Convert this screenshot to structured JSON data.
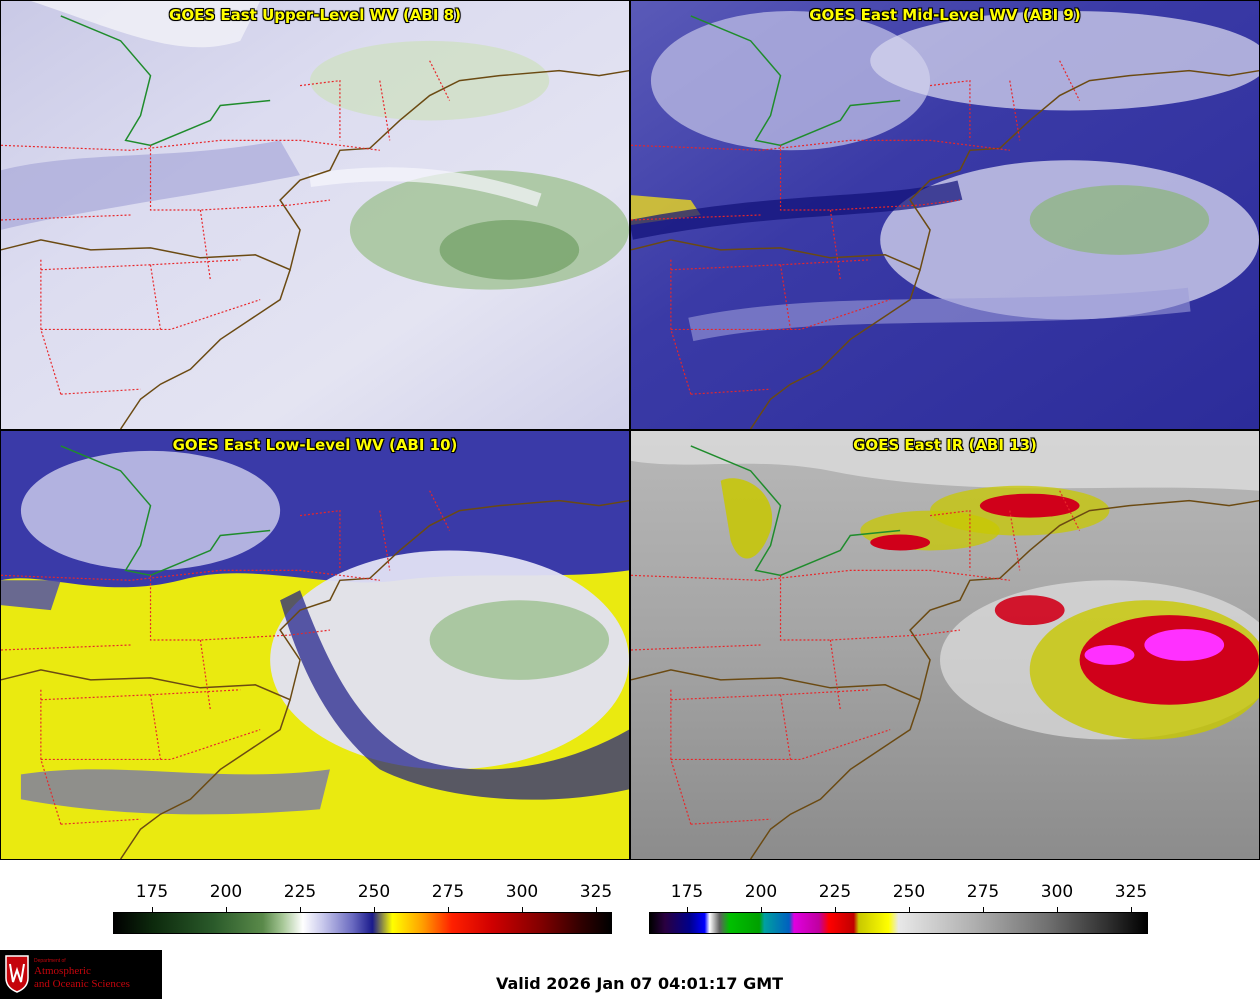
{
  "panels": [
    {
      "title": "GOES East Upper-Level WV (ABI 8)",
      "colormap": "wv"
    },
    {
      "title": "GOES East Mid-Level WV (ABI 9)",
      "colormap": "wv"
    },
    {
      "title": "GOES East Low-Level WV (ABI 10)",
      "colormap": "wv"
    },
    {
      "title": "GOES East IR (ABI 13)",
      "colormap": "ir"
    }
  ],
  "colorbars": {
    "wv": {
      "ticks": [
        "175",
        "200",
        "225",
        "250",
        "275",
        "300",
        "325"
      ]
    },
    "ir": {
      "ticks": [
        "175",
        "200",
        "225",
        "250",
        "275",
        "300",
        "325"
      ]
    }
  },
  "valid_time": "Valid 2026 Jan 07 04:01:17 GMT",
  "logo": {
    "dept": "Department of",
    "line1": "Atmospheric",
    "line2": "and Oceanic Sciences",
    "shield_letter": "W"
  },
  "colors": {
    "state_borders": "#e8262a",
    "coastline": "#6b4a12",
    "lake_border": "#1f8c2c",
    "title_text": "#ffff00"
  }
}
